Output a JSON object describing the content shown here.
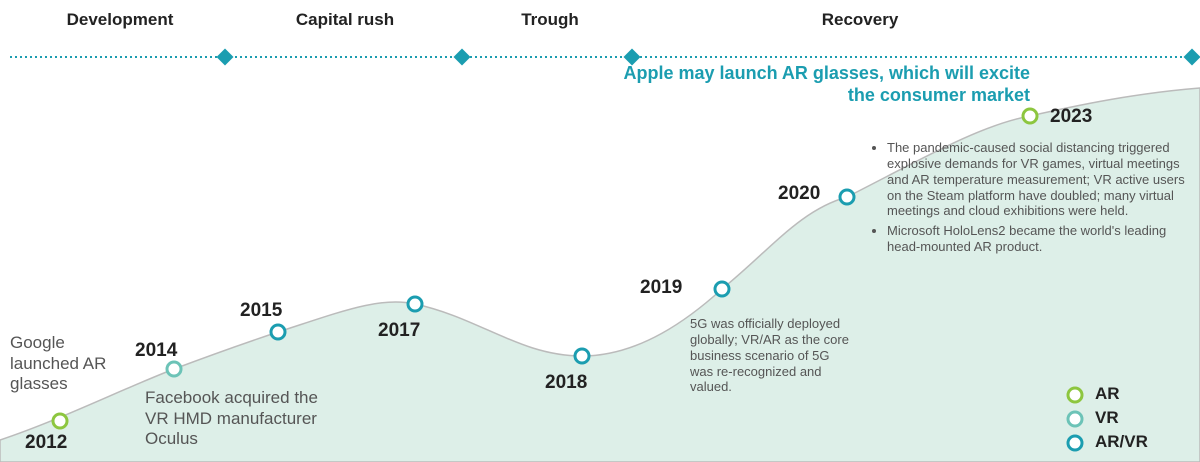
{
  "phases": [
    "Development",
    "Capital rush",
    "Trough",
    "Recovery"
  ],
  "headline": "Apple may launch AR glasses, which will excite the consumer market",
  "milestones": [
    {
      "year": "2012",
      "type": "AR",
      "note": "Google launched AR glasses"
    },
    {
      "year": "2014",
      "type": "VR",
      "note": "Facebook acquired the VR HMD manufacturer Oculus"
    },
    {
      "year": "2015",
      "type": "AR/VR"
    },
    {
      "year": "2017",
      "type": "AR/VR"
    },
    {
      "year": "2018",
      "type": "AR/VR"
    },
    {
      "year": "2019",
      "type": "AR/VR",
      "note": "5G was officially deployed globally; VR/AR as the core business scenario of 5G was re-recognized and valued."
    },
    {
      "year": "2020",
      "type": "AR/VR",
      "bullets": [
        "The pandemic-caused social distancing triggered explosive demands for VR games, virtual meetings and AR temperature measurement; VR active users on the Steam platform have doubled; many virtual meetings and cloud exhibitions were held.",
        "Microsoft HoloLens2 became the world's leading head-mounted AR product."
      ]
    },
    {
      "year": "2023",
      "type": "AR"
    }
  ],
  "legend": [
    {
      "label": "AR",
      "color": "#8dc63f"
    },
    {
      "label": "VR",
      "color": "#6cc3b7"
    },
    {
      "label": "AR/VR",
      "color": "#1b9db0"
    }
  ]
}
